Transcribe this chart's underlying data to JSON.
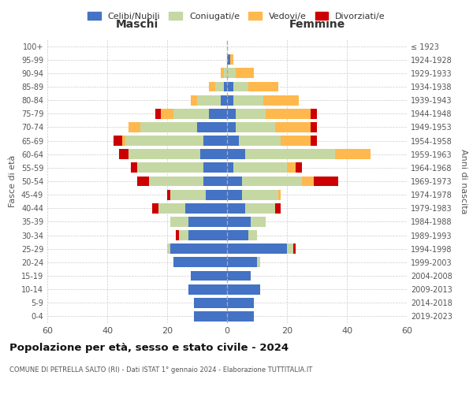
{
  "age_groups": [
    "0-4",
    "5-9",
    "10-14",
    "15-19",
    "20-24",
    "25-29",
    "30-34",
    "35-39",
    "40-44",
    "45-49",
    "50-54",
    "55-59",
    "60-64",
    "65-69",
    "70-74",
    "75-79",
    "80-84",
    "85-89",
    "90-94",
    "95-99",
    "100+"
  ],
  "birth_years": [
    "2019-2023",
    "2014-2018",
    "2009-2013",
    "2004-2008",
    "1999-2003",
    "1994-1998",
    "1989-1993",
    "1984-1988",
    "1979-1983",
    "1974-1978",
    "1969-1973",
    "1964-1968",
    "1959-1963",
    "1954-1958",
    "1949-1953",
    "1944-1948",
    "1939-1943",
    "1934-1938",
    "1929-1933",
    "1924-1928",
    "≤ 1923"
  ],
  "colors": {
    "celibe": "#4472C4",
    "coniugato": "#c5d8a4",
    "vedovo": "#FFB84D",
    "divorziato": "#CC0000"
  },
  "maschi": {
    "celibe": [
      11,
      11,
      13,
      12,
      18,
      19,
      13,
      13,
      14,
      7,
      8,
      8,
      9,
      8,
      10,
      6,
      2,
      1,
      0,
      0,
      0
    ],
    "coniugato": [
      0,
      0,
      0,
      0,
      0,
      1,
      3,
      6,
      9,
      12,
      18,
      22,
      24,
      26,
      19,
      12,
      8,
      3,
      1,
      0,
      0
    ],
    "vedovo": [
      0,
      0,
      0,
      0,
      0,
      0,
      0,
      0,
      0,
      0,
      0,
      0,
      0,
      1,
      4,
      4,
      2,
      2,
      1,
      0,
      0
    ],
    "divorziato": [
      0,
      0,
      0,
      0,
      0,
      0,
      1,
      0,
      2,
      1,
      4,
      2,
      3,
      3,
      0,
      2,
      0,
      0,
      0,
      0,
      0
    ]
  },
  "femmine": {
    "nubile": [
      9,
      9,
      11,
      8,
      10,
      20,
      7,
      8,
      6,
      5,
      5,
      2,
      6,
      4,
      3,
      3,
      2,
      2,
      0,
      1,
      0
    ],
    "coniugata": [
      0,
      0,
      0,
      0,
      1,
      2,
      3,
      5,
      10,
      12,
      20,
      18,
      30,
      14,
      13,
      10,
      10,
      5,
      3,
      0,
      0
    ],
    "vedova": [
      0,
      0,
      0,
      0,
      0,
      0,
      0,
      0,
      0,
      1,
      4,
      3,
      12,
      10,
      12,
      15,
      12,
      10,
      6,
      1,
      0
    ],
    "divorziata": [
      0,
      0,
      0,
      0,
      0,
      1,
      0,
      0,
      2,
      0,
      8,
      2,
      0,
      2,
      2,
      2,
      0,
      0,
      0,
      0,
      0
    ]
  },
  "title": "Popolazione per età, sesso e stato civile - 2024",
  "subtitle": "COMUNE DI PETRELLA SALTO (RI) - Dati ISTAT 1° gennaio 2024 - Elaborazione TUTTITALIA.IT",
  "xlabel_left": "Maschi",
  "xlabel_right": "Femmine",
  "ylabel_left": "Fasce di età",
  "ylabel_right": "Anni di nascita",
  "xlim": 60,
  "legend_labels": [
    "Celibi/Nubili",
    "Coniugati/e",
    "Vedovi/e",
    "Divorziati/e"
  ],
  "bg_color": "#ffffff",
  "grid_color": "#cccccc"
}
